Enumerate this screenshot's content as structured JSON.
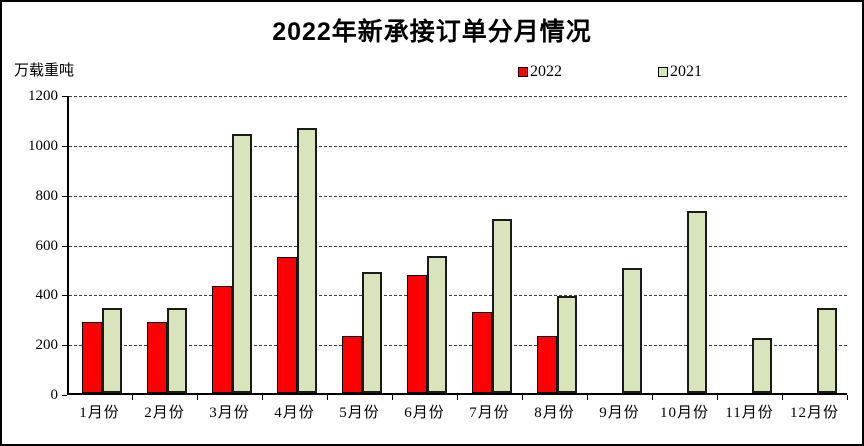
{
  "chart_data": {
    "type": "bar",
    "title": "2022年新承接订单分月情况",
    "unit_label": "万载重吨",
    "categories": [
      "1月份",
      "2月份",
      "3月份",
      "4月份",
      "5月份",
      "6月份",
      "7月份",
      "8月份",
      "9月份",
      "10月份",
      "11月份",
      "12月份"
    ],
    "series": [
      {
        "name": "2022",
        "color": "#FF0000",
        "values": [
          285,
          285,
          430,
          545,
          230,
          475,
          325,
          230,
          null,
          null,
          null,
          null
        ]
      },
      {
        "name": "2021",
        "color": "#D8E4BC",
        "values": [
          340,
          340,
          1040,
          1065,
          485,
          550,
          700,
          390,
          500,
          730,
          220,
          340
        ]
      }
    ],
    "xlabel": "",
    "ylabel": "万载重吨",
    "ylim": [
      0,
      1200
    ],
    "yticks": [
      0,
      200,
      400,
      600,
      800,
      1000,
      1200
    ],
    "grid": "horizontal-dashed",
    "legend_position": "top-center",
    "axis_color": "#000000",
    "background": "#FFFFFF"
  }
}
